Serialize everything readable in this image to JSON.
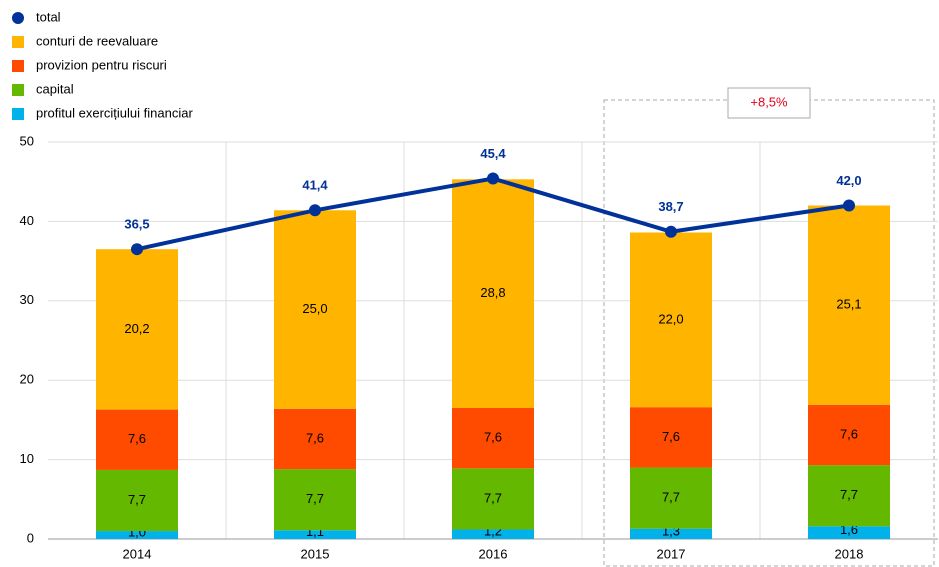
{
  "chart_data": {
    "type": "bar",
    "categories": [
      "2014",
      "2015",
      "2016",
      "2017",
      "2018"
    ],
    "series": [
      {
        "name": "total",
        "type": "line",
        "color": "#003299",
        "values": [
          36.5,
          41.4,
          45.4,
          38.7,
          42.0
        ],
        "value_labels": [
          "36,5",
          "41,4",
          "45,4",
          "38,7",
          "42,0"
        ]
      },
      {
        "name": "conturi de reevaluare",
        "color": "#ffb400",
        "values": [
          20.2,
          25.0,
          28.8,
          22.0,
          25.1
        ],
        "value_labels": [
          "20,2",
          "25,0",
          "28,8",
          "22,0",
          "25,1"
        ]
      },
      {
        "name": "provizion pentru riscuri",
        "color": "#ff4b00",
        "values": [
          7.6,
          7.6,
          7.6,
          7.6,
          7.6
        ],
        "value_labels": [
          "7,6",
          "7,6",
          "7,6",
          "7,6",
          "7,6"
        ]
      },
      {
        "name": "capital",
        "color": "#65b800",
        "values": [
          7.7,
          7.7,
          7.7,
          7.7,
          7.7
        ],
        "value_labels": [
          "7,7",
          "7,7",
          "7,7",
          "7,7",
          "7,7"
        ]
      },
      {
        "name": "profitul exercițiului financiar",
        "color": "#00b1ea",
        "values": [
          1.0,
          1.1,
          1.2,
          1.3,
          1.6
        ],
        "value_labels": [
          "1,0",
          "1,1",
          "1,2",
          "1,3",
          "1,6"
        ]
      }
    ],
    "annotation": "+8,5%",
    "ylim": [
      0,
      50
    ],
    "yticks": [
      0,
      10,
      20,
      30,
      40,
      50
    ],
    "grid": true,
    "legend": "top-left"
  }
}
